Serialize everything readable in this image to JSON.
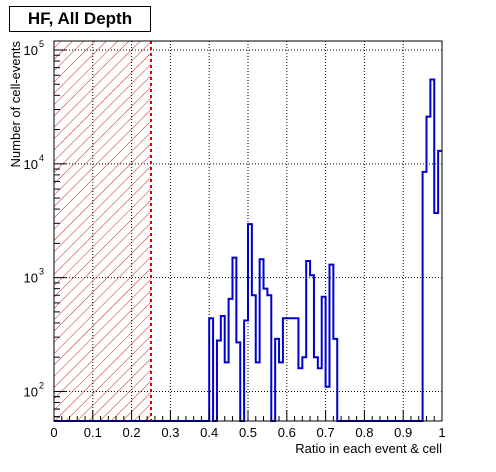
{
  "chart_data": {
    "type": "histogram",
    "title": "HF, All Depth",
    "xlabel": "Ratio in each event & cell",
    "ylabel": "Number of cell-events",
    "xlim": [
      0,
      1
    ],
    "ylim": [
      55,
      120000
    ],
    "y_scale": "log",
    "grid": true,
    "x_ticks": [
      "0",
      "0.1",
      "0.2",
      "0.3",
      "0.4",
      "0.5",
      "0.6",
      "0.7",
      "0.8",
      "0.9",
      "1"
    ],
    "y_ticks": [
      {
        "value": 100,
        "base": "10",
        "exp": "2"
      },
      {
        "value": 1000,
        "base": "10",
        "exp": "3"
      },
      {
        "value": 10000,
        "base": "10",
        "exp": "4"
      },
      {
        "value": 100000,
        "base": "10",
        "exp": "5"
      }
    ],
    "cut_line_x": 0.25,
    "excluded_region": [
      0,
      0.25
    ],
    "bin_width": 0.01,
    "bins": [
      {
        "x": 0.4,
        "y": 440
      },
      {
        "x": 0.41,
        "y": 0
      },
      {
        "x": 0.42,
        "y": 280
      },
      {
        "x": 0.43,
        "y": 460
      },
      {
        "x": 0.44,
        "y": 180
      },
      {
        "x": 0.45,
        "y": 650
      },
      {
        "x": 0.46,
        "y": 1500
      },
      {
        "x": 0.47,
        "y": 270
      },
      {
        "x": 0.48,
        "y": 0
      },
      {
        "x": 0.49,
        "y": 420
      },
      {
        "x": 0.5,
        "y": 2950
      },
      {
        "x": 0.51,
        "y": 700
      },
      {
        "x": 0.52,
        "y": 180
      },
      {
        "x": 0.53,
        "y": 1450
      },
      {
        "x": 0.54,
        "y": 800
      },
      {
        "x": 0.55,
        "y": 700
      },
      {
        "x": 0.56,
        "y": 0
      },
      {
        "x": 0.57,
        "y": 290
      },
      {
        "x": 0.58,
        "y": 180
      },
      {
        "x": 0.59,
        "y": 440
      },
      {
        "x": 0.6,
        "y": 440
      },
      {
        "x": 0.61,
        "y": 440
      },
      {
        "x": 0.62,
        "y": 440
      },
      {
        "x": 0.63,
        "y": 160
      },
      {
        "x": 0.64,
        "y": 200
      },
      {
        "x": 0.65,
        "y": 1400
      },
      {
        "x": 0.66,
        "y": 1050
      },
      {
        "x": 0.67,
        "y": 200
      },
      {
        "x": 0.68,
        "y": 160
      },
      {
        "x": 0.69,
        "y": 680
      },
      {
        "x": 0.7,
        "y": 110
      },
      {
        "x": 0.71,
        "y": 1300
      },
      {
        "x": 0.72,
        "y": 290
      },
      {
        "x": 0.73,
        "y": 0
      },
      {
        "x": 0.74,
        "y": 0
      },
      {
        "x": 0.95,
        "y": 8500
      },
      {
        "x": 0.96,
        "y": 26000
      },
      {
        "x": 0.97,
        "y": 55000
      },
      {
        "x": 0.98,
        "y": 3700
      },
      {
        "x": 0.99,
        "y": 13000
      }
    ]
  }
}
